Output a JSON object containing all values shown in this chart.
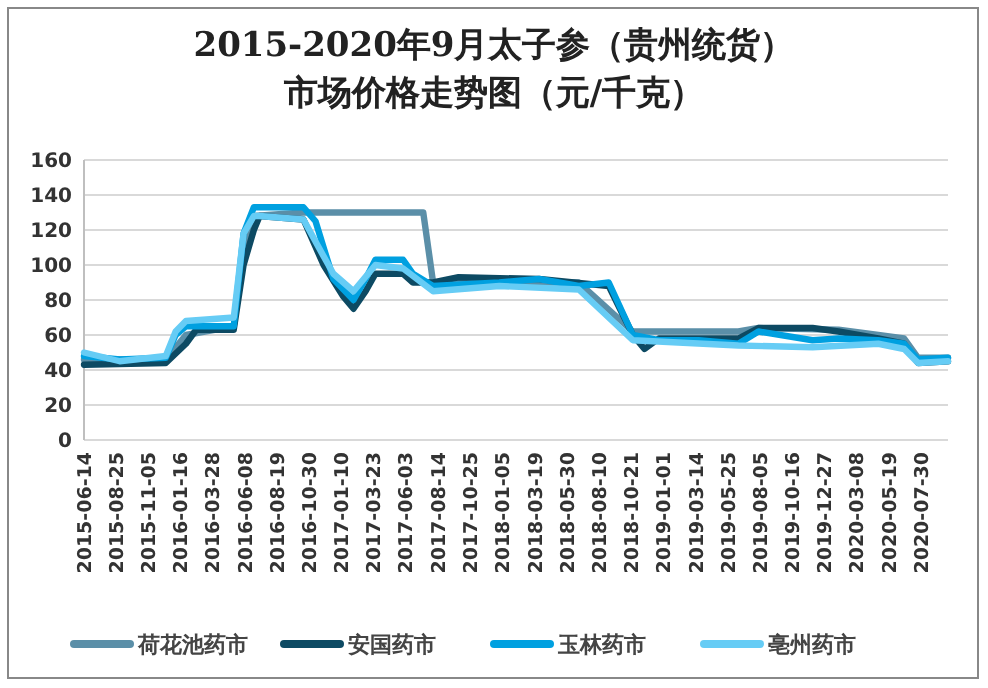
{
  "chart_data": {
    "type": "line",
    "title": "2015-2020年9月太子参（贵州统货）市场价格走势图（元/千克）",
    "xlim": [
      "2015-06-14",
      "2020-09-28"
    ],
    "xticks": [
      "2015-06-14",
      "2015-08-25",
      "2015-11-05",
      "2016-01-16",
      "2016-03-28",
      "2016-06-08",
      "2016-08-19",
      "2016-10-30",
      "2017-01-10",
      "2017-03-23",
      "2017-06-03",
      "2017-08-14",
      "2017-10-25",
      "2018-01-05",
      "2018-03-19",
      "2018-05-30",
      "2018-08-10",
      "2018-10-21",
      "2019-01-01",
      "2019-03-14",
      "2019-05-25",
      "2019-08-05",
      "2019-10-16",
      "2019-12-27",
      "2020-03-08",
      "2020-05-19",
      "2020-07-30"
    ],
    "ylim": [
      0,
      160
    ],
    "yticks": [
      0,
      20,
      40,
      60,
      80,
      100,
      120,
      140,
      160
    ],
    "grid": "y",
    "legend": "bottom",
    "series": [
      {
        "name": "荷花池药市",
        "color": "#5b8fa8",
        "x": [
          "2015-06-14",
          "2015-12-14",
          "2016-01-28",
          "2016-05-14",
          "2016-06-05",
          "2016-06-28",
          "2016-10-17",
          "2017-07-12",
          "2017-08-03",
          "2018-06-25",
          "2018-10-24",
          "2019-06-17",
          "2019-08-01",
          "2020-01-27",
          "2020-04-25",
          "2020-06-22",
          "2020-07-23",
          "2020-09-28"
        ],
        "values": [
          46,
          46,
          60,
          65,
          110,
          128,
          130,
          130,
          90,
          90,
          62,
          62,
          64,
          63,
          60,
          58,
          47,
          47
        ]
      },
      {
        "name": "安国药市",
        "color": "#0d4a63",
        "x": [
          "2015-06-14",
          "2015-12-14",
          "2016-01-28",
          "2016-02-20",
          "2016-05-14",
          "2016-06-05",
          "2016-06-28",
          "2016-07-11",
          "2016-10-17",
          "2016-12-01",
          "2017-01-14",
          "2017-02-06",
          "2017-03-05",
          "2017-03-27",
          "2017-05-28",
          "2017-06-19",
          "2017-08-03",
          "2017-09-29",
          "2018-03-28",
          "2018-08-31",
          "2018-10-24",
          "2018-11-19",
          "2018-12-21",
          "2019-06-17",
          "2019-08-01",
          "2019-11-30",
          "2020-01-27",
          "2020-04-25",
          "2020-06-22",
          "2020-07-23",
          "2020-09-28"
        ],
        "values": [
          43,
          44,
          55,
          63,
          63,
          100,
          120,
          128,
          126,
          100,
          82,
          75,
          85,
          95,
          95,
          90,
          90,
          93,
          92,
          88,
          60,
          52,
          58,
          58,
          64,
          64,
          62,
          58,
          55,
          44,
          45
        ]
      },
      {
        "name": "玉林药市",
        "color": "#00a0e0",
        "x": [
          "2015-06-14",
          "2015-09-02",
          "2015-12-14",
          "2016-01-05",
          "2016-01-28",
          "2016-05-14",
          "2016-06-05",
          "2016-06-28",
          "2016-10-17",
          "2016-11-13",
          "2016-12-01",
          "2016-12-23",
          "2017-02-06",
          "2017-03-05",
          "2017-03-27",
          "2017-05-28",
          "2017-06-19",
          "2017-08-03",
          "2017-12-29",
          "2018-03-28",
          "2018-06-25",
          "2018-08-31",
          "2018-10-24",
          "2018-12-21",
          "2019-03-20",
          "2019-06-17",
          "2019-08-01",
          "2019-11-30",
          "2020-01-27",
          "2020-04-25",
          "2020-06-22",
          "2020-07-23",
          "2020-09-28"
        ],
        "values": [
          48,
          46,
          47,
          60,
          65,
          65,
          118,
          133,
          133,
          125,
          110,
          92,
          80,
          92,
          103,
          103,
          95,
          88,
          90,
          92,
          88,
          90,
          60,
          57,
          57,
          55,
          62,
          57,
          58,
          57,
          55,
          46,
          47
        ]
      },
      {
        "name": "亳州药市",
        "color": "#66ccf5",
        "x": [
          "2015-06-14",
          "2015-09-02",
          "2015-12-14",
          "2016-01-05",
          "2016-01-28",
          "2016-05-14",
          "2016-06-05",
          "2016-06-28",
          "2016-07-11",
          "2016-10-17",
          "2016-12-01",
          "2016-12-23",
          "2017-02-06",
          "2017-03-27",
          "2017-05-28",
          "2017-08-03",
          "2017-12-29",
          "2018-06-25",
          "2018-10-24",
          "2019-06-17",
          "2019-11-30",
          "2020-04-25",
          "2020-06-22",
          "2020-07-23",
          "2020-09-28"
        ],
        "values": [
          50,
          45,
          48,
          62,
          68,
          70,
          118,
          128,
          128,
          126,
          105,
          95,
          85,
          100,
          98,
          85,
          88,
          86,
          57,
          54,
          53,
          55,
          52,
          44,
          45
        ]
      }
    ]
  }
}
